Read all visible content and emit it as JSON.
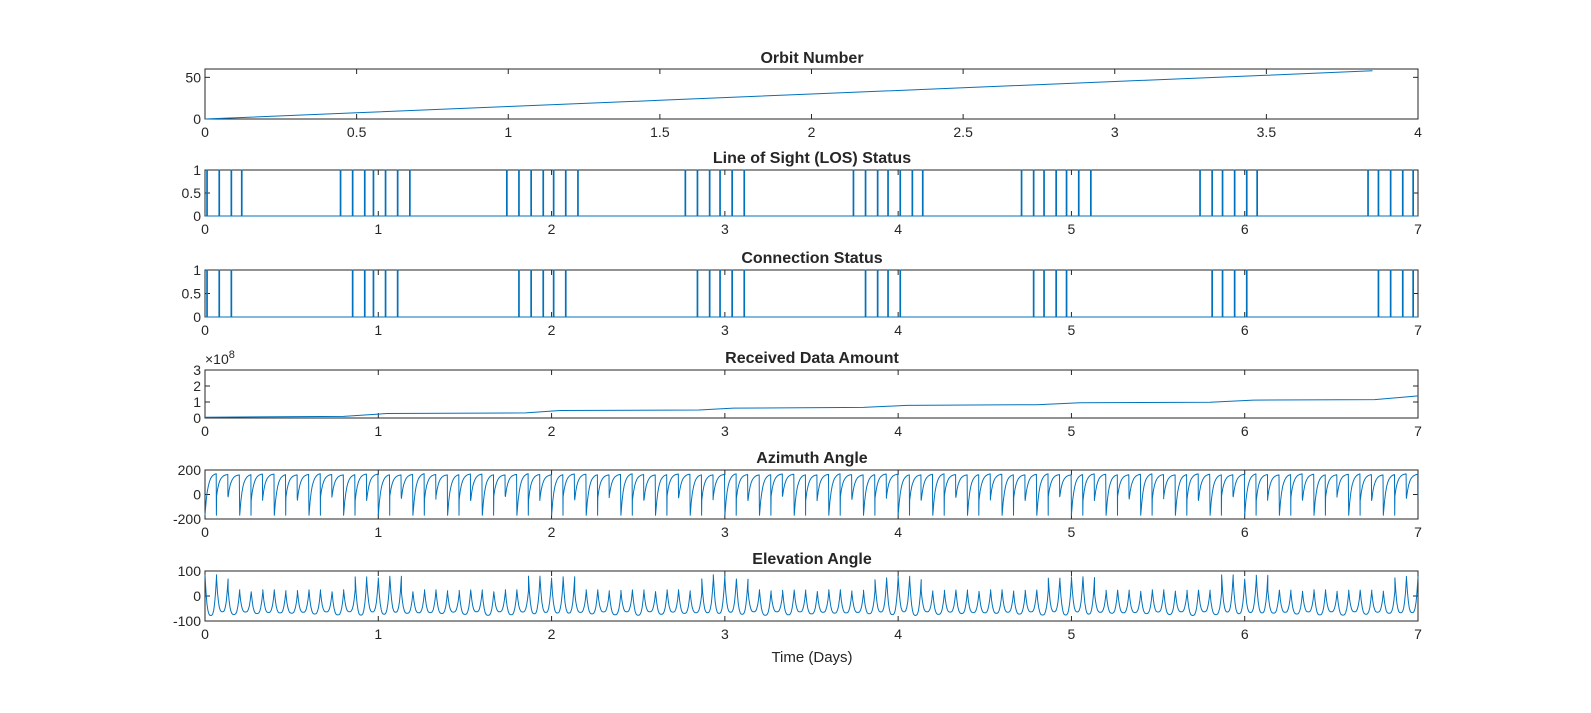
{
  "chart_data": [
    {
      "type": "line",
      "title": "Orbit Number",
      "xlabel": "",
      "ylabel": "",
      "xlim": [
        0,
        4
      ],
      "ylim": [
        0,
        60
      ],
      "xticks": [
        0,
        0.5,
        1,
        1.5,
        2,
        2.5,
        3,
        3.5,
        4
      ],
      "yticks": [
        0,
        50
      ],
      "line_color": "#0072BD",
      "series": [
        {
          "x": [
            0,
            0.5,
            1,
            1.5,
            2,
            2.5,
            3,
            3.5,
            3.85
          ],
          "y": [
            0,
            7.5,
            15,
            22.5,
            30,
            37.5,
            45,
            52.5,
            58
          ]
        }
      ]
    },
    {
      "type": "line",
      "title": "Line of Sight (LOS) Status",
      "xlabel": "",
      "ylabel": "",
      "xlim": [
        0,
        7
      ],
      "ylim": [
        0,
        1
      ],
      "xticks": [
        0,
        1,
        2,
        3,
        4,
        5,
        6,
        7
      ],
      "yticks": [
        0,
        0.5,
        1
      ],
      "line_color": "#0072BD",
      "pulse_times": [
        0.01,
        0.08,
        0.15,
        0.21,
        0.78,
        0.85,
        0.92,
        0.97,
        1.04,
        1.11,
        1.18,
        1.74,
        1.81,
        1.88,
        1.95,
        2.01,
        2.08,
        2.15,
        2.77,
        2.84,
        2.91,
        2.97,
        3.04,
        3.11,
        3.74,
        3.81,
        3.88,
        3.94,
        4.01,
        4.08,
        4.14,
        4.71,
        4.78,
        4.84,
        4.91,
        4.97,
        5.04,
        5.11,
        5.74,
        5.81,
        5.87,
        5.94,
        6.01,
        6.07,
        6.71,
        6.77,
        6.84,
        6.91,
        6.97
      ]
    },
    {
      "type": "line",
      "title": "Connection Status",
      "xlabel": "",
      "ylabel": "",
      "xlim": [
        0,
        7
      ],
      "ylim": [
        0,
        1
      ],
      "xticks": [
        0,
        1,
        2,
        3,
        4,
        5,
        6,
        7
      ],
      "yticks": [
        0,
        0.5,
        1
      ],
      "line_color": "#0072BD",
      "pulse_times": [
        0.01,
        0.08,
        0.15,
        0.85,
        0.92,
        0.97,
        1.04,
        1.11,
        1.81,
        1.88,
        1.95,
        2.01,
        2.08,
        2.84,
        2.91,
        2.97,
        3.04,
        3.11,
        3.81,
        3.88,
        3.94,
        4.01,
        4.78,
        4.84,
        4.91,
        4.97,
        5.81,
        5.87,
        5.94,
        6.01,
        6.77,
        6.84,
        6.91,
        6.97
      ]
    },
    {
      "type": "line",
      "title": "Received Data Amount",
      "xlabel": "",
      "ylabel": "",
      "xlim": [
        0,
        7
      ],
      "ylim": [
        0,
        3
      ],
      "xticks": [
        0,
        1,
        2,
        3,
        4,
        5,
        6,
        7
      ],
      "yticks": [
        0,
        1,
        2,
        3
      ],
      "exponent_label": "×10",
      "exponent_power": "8",
      "line_color": "#0072BD",
      "series": [
        {
          "x": [
            0,
            0.8,
            1.05,
            1.85,
            2.05,
            2.85,
            3.05,
            3.8,
            4.05,
            4.8,
            5.05,
            5.8,
            6.05,
            6.75,
            7
          ],
          "y": [
            0.05,
            0.1,
            0.28,
            0.32,
            0.47,
            0.5,
            0.62,
            0.66,
            0.79,
            0.83,
            0.95,
            0.99,
            1.12,
            1.15,
            1.38
          ]
        }
      ]
    },
    {
      "type": "line",
      "title": "Azimuth Angle",
      "xlabel": "",
      "ylabel": "",
      "xlim": [
        0,
        7
      ],
      "ylim": [
        -200,
        200
      ],
      "xticks": [
        0,
        1,
        2,
        3,
        4,
        5,
        6,
        7
      ],
      "yticks": [
        -200,
        0,
        200
      ],
      "line_color": "#0072BD",
      "cycles_per_day": 15,
      "range_min": -170,
      "range_max": 170
    },
    {
      "type": "line",
      "title": "Elevation Angle",
      "xlabel": "Time (Days)",
      "ylabel": "",
      "xlim": [
        0,
        7
      ],
      "ylim": [
        -100,
        100
      ],
      "xticks": [
        0,
        1,
        2,
        3,
        4,
        5,
        6,
        7
      ],
      "yticks": [
        -100,
        0,
        100
      ],
      "line_color": "#0072BD",
      "cycles_per_day": 15,
      "min_value": -78,
      "max_value": 85
    }
  ]
}
